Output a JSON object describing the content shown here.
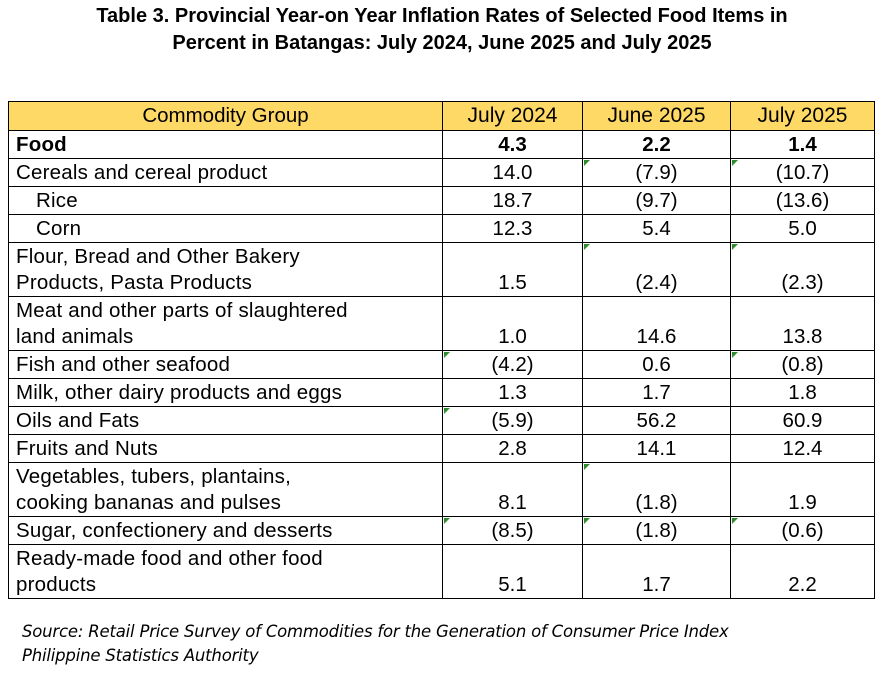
{
  "title": {
    "line1": "Table 3. Provincial Year-on Year Inflation Rates of Selected Food Items in",
    "line2": "Percent in Batangas: July 2024, June 2025 and July 2025"
  },
  "table": {
    "columns": [
      "Commodity Group",
      "July 2024",
      "June 2025",
      "July 2025"
    ],
    "header_color": "#ffd966",
    "rows": [
      {
        "label": "Food",
        "values": [
          "4.3",
          "2.2",
          "1.4"
        ]
      },
      {
        "label": "Cereals and cereal product",
        "values": [
          "14.0",
          "(7.9)",
          "(10.7)"
        ]
      },
      {
        "label": "Rice",
        "values": [
          "18.7",
          "(9.7)",
          "(13.6)"
        ]
      },
      {
        "label": "Corn",
        "values": [
          "12.3",
          "5.4",
          "5.0"
        ]
      },
      {
        "label_lines": [
          "Flour, Bread and Other Bakery",
          "Products, Pasta Products"
        ],
        "values": [
          "1.5",
          "(2.4)",
          "(2.3)"
        ]
      },
      {
        "label_lines": [
          "Meat and other parts of slaughtered",
          "land animals"
        ],
        "values": [
          "1.0",
          "14.6",
          "13.8"
        ]
      },
      {
        "label": "Fish and other seafood",
        "values": [
          "(4.2)",
          "0.6",
          "(0.8)"
        ]
      },
      {
        "label": "Milk, other dairy products and eggs",
        "values": [
          "1.3",
          "1.7",
          "1.8"
        ]
      },
      {
        "label": "Oils and Fats",
        "values": [
          "(5.9)",
          "56.2",
          "60.9"
        ]
      },
      {
        "label": "Fruits and Nuts",
        "values": [
          "2.8",
          "14.1",
          "12.4"
        ]
      },
      {
        "label_lines": [
          "Vegetables, tubers, plantains,",
          "cooking bananas and pulses"
        ],
        "values": [
          "8.1",
          "(1.8)",
          "1.9"
        ]
      },
      {
        "label": "Sugar, confectionery and desserts",
        "values": [
          "(8.5)",
          "(1.8)",
          "(0.6)"
        ]
      },
      {
        "label_lines": [
          "Ready-made food and other food",
          "products"
        ],
        "values": [
          "5.1",
          "1.7",
          "2.2"
        ]
      }
    ]
  },
  "source": {
    "line1": "Source: Retail Price Survey of Commodities for the Generation of Consumer Price Index",
    "line2": "Philippine Statistics Authority"
  }
}
